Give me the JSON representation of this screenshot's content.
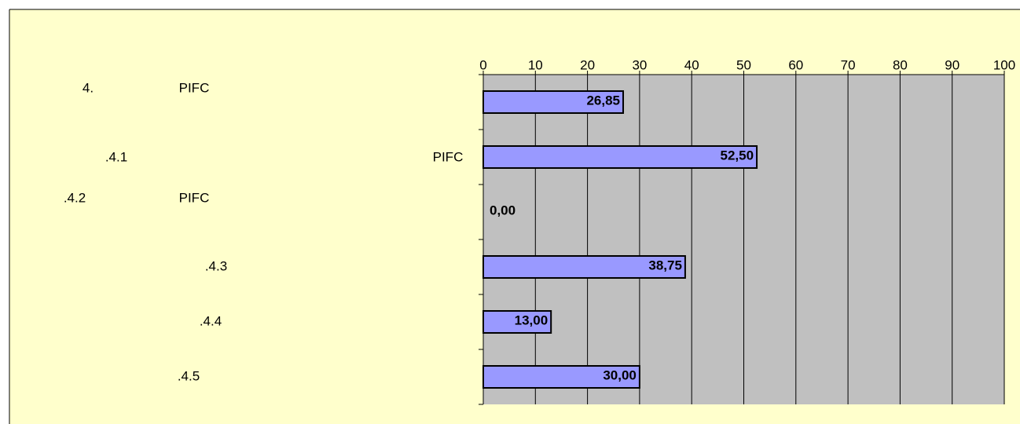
{
  "chart_data": {
    "type": "barh",
    "categories": [
      [
        "4.",
        "PIFC"
      ],
      [
        ".4.1",
        "PIFC"
      ],
      [
        ".4.2",
        "PIFC"
      ],
      [
        ".4.3"
      ],
      [
        ".4.4"
      ],
      [
        ".4.5"
      ]
    ],
    "values": [
      26.85,
      52.5,
      0,
      38.75,
      13,
      30
    ],
    "value_labels": [
      "26,85",
      "52,50",
      "0,00",
      "38,75",
      "13,00",
      "30,00"
    ],
    "color": "#9999ff",
    "xlim": [
      0,
      100
    ],
    "xticks": [
      0,
      10,
      20,
      30,
      40,
      50,
      60,
      70,
      80,
      90,
      100
    ],
    "grid": true
  }
}
